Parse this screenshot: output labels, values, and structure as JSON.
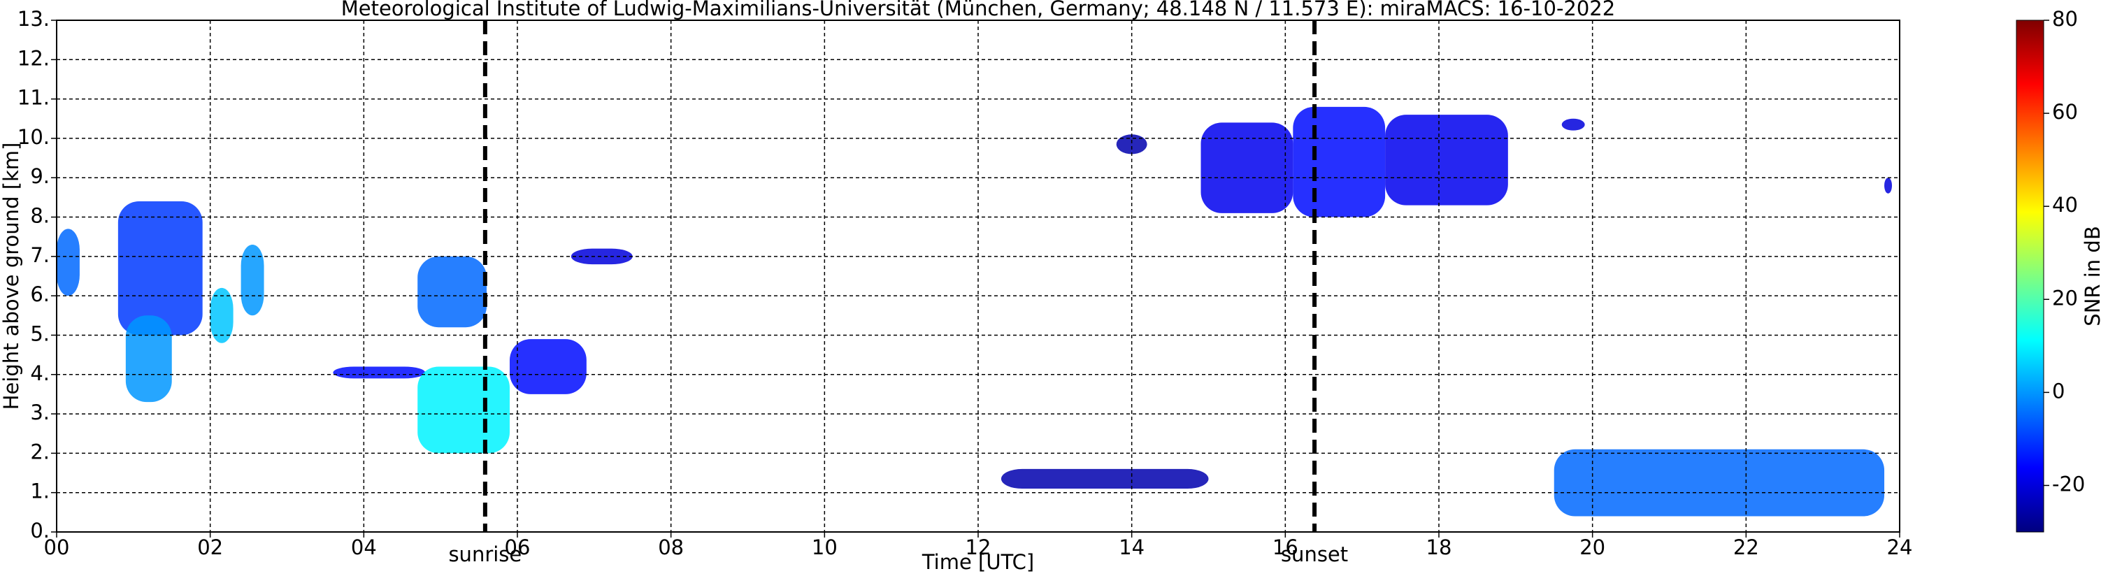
{
  "chart_data": {
    "type": "heatmap",
    "title": "Meteorological Institute of Ludwig-Maximilians-Universität (München, Germany; 48.148 N / 11.573 E):    miraMACS: 16-10-2022",
    "x_label": "Time [UTC]",
    "y_label": "Height above ground [km]",
    "colorbar_label": "SNR in dB",
    "xlim": [
      0,
      24
    ],
    "xticks": [
      {
        "value": 0,
        "label": "00"
      },
      {
        "value": 2,
        "label": "02"
      },
      {
        "value": 4,
        "label": "04"
      },
      {
        "value": 6,
        "label": "06"
      },
      {
        "value": 8,
        "label": "08"
      },
      {
        "value": 10,
        "label": "10"
      },
      {
        "value": 12,
        "label": "12"
      },
      {
        "value": 14,
        "label": "14"
      },
      {
        "value": 16,
        "label": "16"
      },
      {
        "value": 18,
        "label": "18"
      },
      {
        "value": 20,
        "label": "20"
      },
      {
        "value": 22,
        "label": "22"
      },
      {
        "value": 24,
        "label": "24"
      }
    ],
    "ylim": [
      0,
      13
    ],
    "yticks": [
      {
        "value": 0,
        "label": "0."
      },
      {
        "value": 1,
        "label": "1."
      },
      {
        "value": 2,
        "label": "2."
      },
      {
        "value": 3,
        "label": "3."
      },
      {
        "value": 4,
        "label": "4."
      },
      {
        "value": 5,
        "label": "5."
      },
      {
        "value": 6,
        "label": "6."
      },
      {
        "value": 7,
        "label": "7."
      },
      {
        "value": 8,
        "label": "8."
      },
      {
        "value": 9,
        "label": "9."
      },
      {
        "value": 10,
        "label": "10."
      },
      {
        "value": 11,
        "label": "11."
      },
      {
        "value": 12,
        "label": "12."
      },
      {
        "value": 13,
        "label": "13."
      }
    ],
    "clim": [
      -30,
      80
    ],
    "cticks": [
      -20,
      0,
      20,
      40,
      60,
      80
    ],
    "colormap": "jet",
    "grid": true,
    "events": [
      {
        "label": "sunrise",
        "x": 5.58
      },
      {
        "label": "sunset",
        "x": 16.38
      }
    ],
    "echoes": [
      {
        "x0": 0.0,
        "x1": 0.3,
        "y0": 6.0,
        "y1": 7.7,
        "snr": -5
      },
      {
        "x0": 0.8,
        "x1": 1.9,
        "y0": 5.0,
        "y1": 8.4,
        "snr": -10
      },
      {
        "x0": 0.9,
        "x1": 1.5,
        "y0": 3.3,
        "y1": 5.5,
        "snr": 0
      },
      {
        "x0": 2.0,
        "x1": 2.3,
        "y0": 4.8,
        "y1": 6.2,
        "snr": 5
      },
      {
        "x0": 2.4,
        "x1": 2.7,
        "y0": 5.5,
        "y1": 7.3,
        "snr": 0
      },
      {
        "x0": 3.6,
        "x1": 4.8,
        "y0": 3.9,
        "y1": 4.2,
        "snr": -15
      },
      {
        "x0": 4.7,
        "x1": 5.6,
        "y0": 5.2,
        "y1": 7.0,
        "snr": -5
      },
      {
        "x0": 4.7,
        "x1": 5.9,
        "y0": 2.0,
        "y1": 4.2,
        "snr": 10
      },
      {
        "x0": 5.9,
        "x1": 6.9,
        "y0": 3.5,
        "y1": 4.9,
        "snr": -15
      },
      {
        "x0": 6.7,
        "x1": 7.5,
        "y0": 6.8,
        "y1": 7.2,
        "snr": -20
      },
      {
        "x0": 13.8,
        "x1": 14.2,
        "y0": 9.6,
        "y1": 10.1,
        "snr": -25
      },
      {
        "x0": 14.9,
        "x1": 16.1,
        "y0": 8.1,
        "y1": 10.4,
        "snr": -18
      },
      {
        "x0": 16.1,
        "x1": 17.3,
        "y0": 8.0,
        "y1": 10.8,
        "snr": -15
      },
      {
        "x0": 17.3,
        "x1": 18.9,
        "y0": 8.3,
        "y1": 10.6,
        "snr": -18
      },
      {
        "x0": 19.6,
        "x1": 19.9,
        "y0": 10.2,
        "y1": 10.5,
        "snr": -20
      },
      {
        "x0": 12.3,
        "x1": 15.0,
        "y0": 1.1,
        "y1": 1.6,
        "snr": -25
      },
      {
        "x0": 19.5,
        "x1": 23.8,
        "y0": 0.4,
        "y1": 2.1,
        "snr": -5
      },
      {
        "x0": 23.8,
        "x1": 23.9,
        "y0": 8.6,
        "y1": 9.0,
        "snr": -20
      }
    ]
  }
}
